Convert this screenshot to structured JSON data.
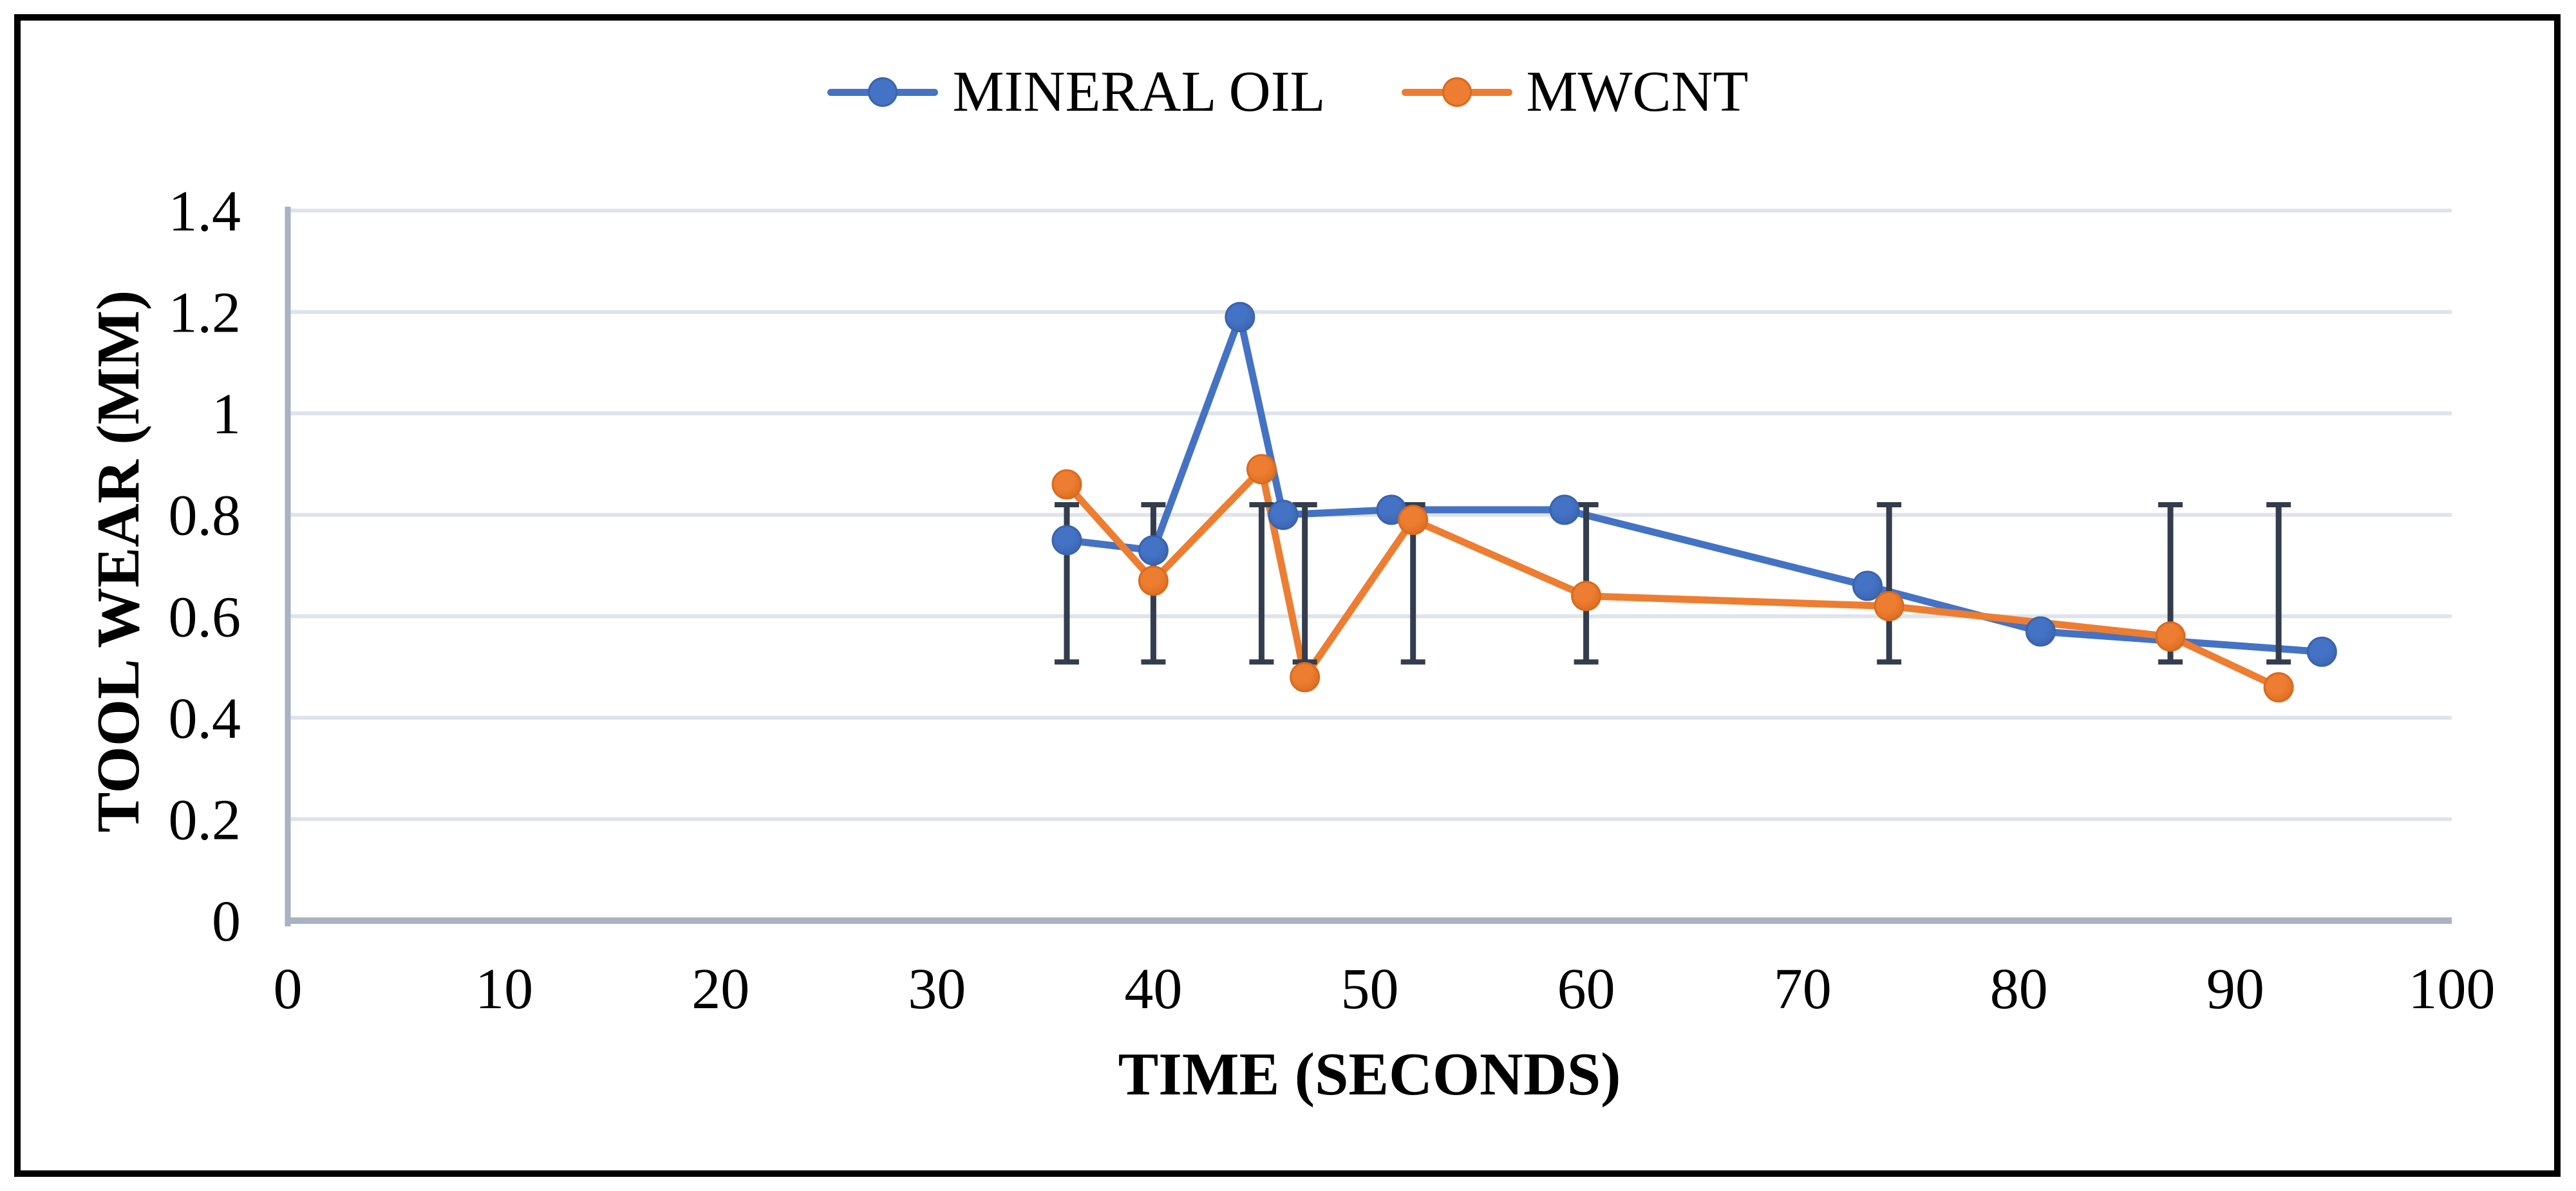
{
  "page": {
    "background": "#FFFFFF",
    "border_color": "#000000"
  },
  "chart_data": {
    "type": "line",
    "title": "",
    "xlabel": "TIME (SECONDS)",
    "ylabel": "TOOL WEAR (MM)",
    "xlim": [
      0,
      100
    ],
    "ylim": [
      0,
      1.4
    ],
    "x_ticks": [
      0,
      10,
      20,
      30,
      40,
      50,
      60,
      70,
      80,
      90,
      100
    ],
    "y_ticks": [
      0,
      0.2,
      0.4,
      0.6,
      0.8,
      1,
      1.2,
      1.4
    ],
    "y_tick_labels": [
      "0",
      "0.2",
      "0.4",
      "0.6",
      "0.8",
      "1",
      "1.2",
      "1.4"
    ],
    "grid": true,
    "legend_position": "top",
    "series": [
      {
        "name": "MINERAL OIL",
        "color": "#4472C4",
        "edge_color": "#3A63AE",
        "x": [
          36,
          40,
          44,
          46,
          51,
          59,
          73,
          81,
          94
        ],
        "y": [
          0.75,
          0.73,
          1.19,
          0.8,
          0.81,
          0.81,
          0.66,
          0.57,
          0.53
        ]
      },
      {
        "name": "MWCNT",
        "color": "#ED7D31",
        "edge_color": "#D96A1E",
        "x": [
          36,
          40,
          45,
          47,
          52,
          60,
          74,
          87,
          92
        ],
        "y": [
          0.86,
          0.67,
          0.89,
          0.48,
          0.79,
          0.64,
          0.62,
          0.56,
          0.46
        ]
      }
    ],
    "error_bars": {
      "x": [
        36,
        40,
        45,
        47,
        52,
        60,
        74,
        87,
        92
      ],
      "low": 0.51,
      "high": 0.82,
      "color": "#333D4E"
    },
    "style_colors": {
      "gridline": "#DFE3EB",
      "axis_line": "#A9B2C2",
      "text": "#000000"
    }
  }
}
